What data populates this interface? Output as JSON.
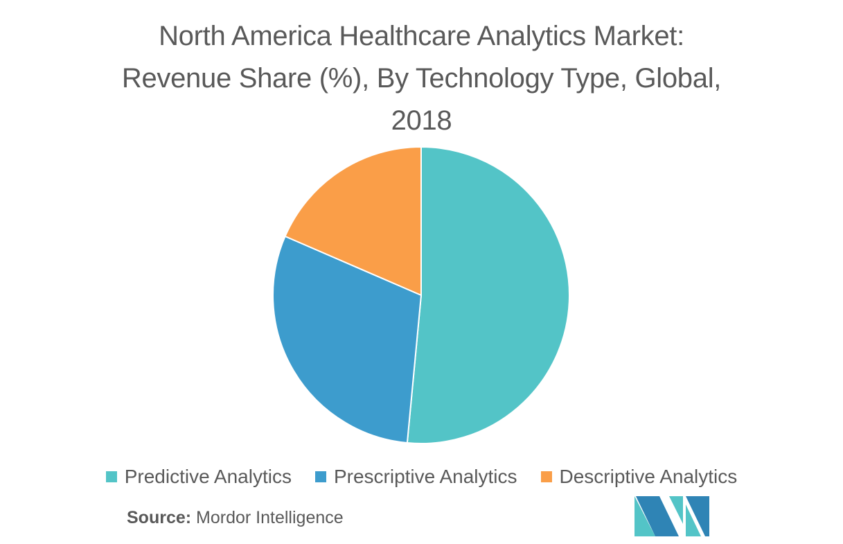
{
  "title_lines": [
    "North America Healthcare Analytics Market:",
    "Revenue Share (%), By Technology Type, Global,",
    "2018"
  ],
  "chart_data": {
    "type": "pie",
    "title": "North America Healthcare Analytics Market: Revenue Share (%), By Technology Type, Global, 2018",
    "categories": [
      "Predictive Analytics",
      "Prescriptive Analytics",
      "Descriptive Analytics"
    ],
    "values": [
      51.5,
      30.0,
      18.5
    ],
    "colors": [
      "#53c4c7",
      "#3d9ccd",
      "#fa9e48"
    ],
    "legend_position": "bottom"
  },
  "legend": [
    {
      "label": "Predictive Analytics",
      "color": "#53c4c7"
    },
    {
      "label": "Prescriptive Analytics",
      "color": "#3d9ccd"
    },
    {
      "label": "Descriptive Analytics",
      "color": "#fa9e48"
    }
  ],
  "source": {
    "label": "Source:",
    "text": "Mordor Intelligence"
  },
  "logo": {
    "icon": "mordor-intelligence-logo-icon",
    "colors": [
      "#2f84b5",
      "#53c4c7"
    ]
  }
}
